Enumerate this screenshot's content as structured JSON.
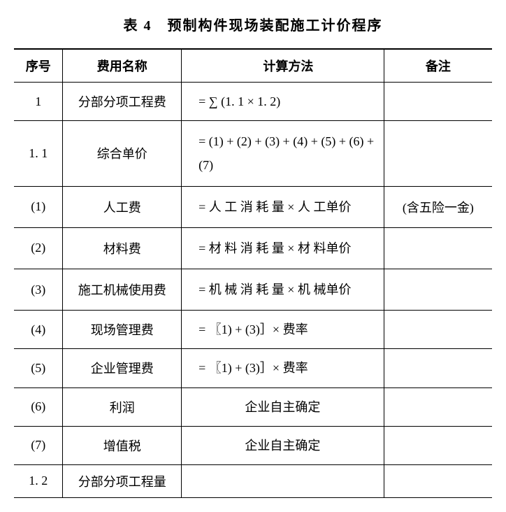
{
  "title": "表 4　预制构件现场装配施工计价程序",
  "columns": [
    "序号",
    "费用名称",
    "计算方法",
    "备注"
  ],
  "rows": [
    {
      "seq": "1",
      "name": "分部分项工程费",
      "calc": "= ∑ (1. 1 × 1. 2)",
      "note": "",
      "tall": false
    },
    {
      "seq": "1. 1",
      "name": "综合单价",
      "calc": "= (1) + (2) + (3) + (4) + (5) + (6) + (7)",
      "note": "",
      "tall": true
    },
    {
      "seq": "(1)",
      "name": "人工费",
      "calc": "= 人 工 消 耗 量 × 人 工单价",
      "note": "(含五险一金)",
      "tall": true
    },
    {
      "seq": "(2)",
      "name": "材料费",
      "calc": "= 材 料 消 耗 量 × 材 料单价",
      "note": "",
      "tall": true
    },
    {
      "seq": "(3)",
      "name": "施工机械使用费",
      "calc": "= 机 械 消 耗 量 × 机 械单价",
      "note": "",
      "tall": true
    },
    {
      "seq": "(4)",
      "name": "现场管理费",
      "calc": "= 〖1) + (3)］× 费率",
      "note": "",
      "tall": false
    },
    {
      "seq": "(5)",
      "name": "企业管理费",
      "calc": "= 〖1) + (3)］× 费率",
      "note": "",
      "tall": false
    },
    {
      "seq": "(6)",
      "name": "利润",
      "calc": "企业自主确定",
      "note": "",
      "tall": false
    },
    {
      "seq": "(7)",
      "name": "增值税",
      "calc": "企业自主确定",
      "note": "",
      "tall": false
    },
    {
      "seq": "1. 2",
      "name": "分部分项工程量",
      "calc": "",
      "note": "",
      "tall": false
    }
  ]
}
